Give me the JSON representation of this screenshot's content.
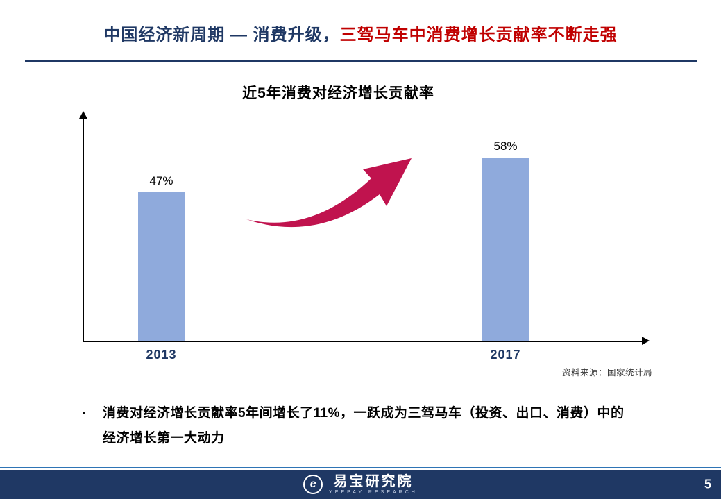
{
  "header": {
    "title_part1": "中国经济新周期 — 消费升级，",
    "title_part2": "三驾马车中消费增长贡献率不断走强",
    "title_color_blue": "#1F3864",
    "title_color_red": "#C00000"
  },
  "chart_data": {
    "type": "bar",
    "title": "近5年消费对经济增长贡献率",
    "categories": [
      "2013",
      "2017"
    ],
    "values": [
      47,
      58
    ],
    "value_labels": [
      "47%",
      "58%"
    ],
    "unit": "%",
    "ylim": [
      0,
      70
    ],
    "grid": false,
    "legend": "none",
    "bar_color": "#8FAADC",
    "axis_color": "#000000",
    "annotation": "upward-growth-arrow",
    "arrow_color": "#C0134E",
    "source": "资料来源：国家统计局"
  },
  "bullet": {
    "marker": "·",
    "text": "消费对经济增长贡献率5年间增长了11%，一跃成为三驾马车（投资、出口、消费）中的经济增长第一大动力"
  },
  "footer": {
    "logo_letter": "e",
    "logo_text": "易宝研究院",
    "logo_subtext": "YEEPAY RESEARCH",
    "page_number": "5",
    "bar_color": "#1F3864"
  }
}
